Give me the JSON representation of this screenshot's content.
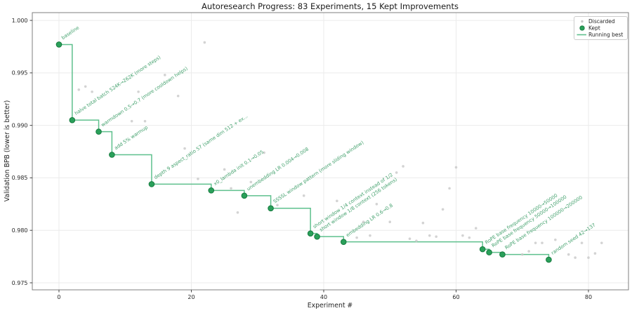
{
  "title": "Autoresearch Progress: 83 Experiments, 15 Kept Improvements",
  "chart_data": {
    "type": "scatter",
    "title": "Autoresearch Progress: 83 Experiments, 15 Kept Improvements",
    "xlabel": "Experiment #",
    "ylabel": "Validation BPB (lower is better)",
    "xlim": [
      -4.03,
      86.05
    ],
    "ylim": [
      0.97433,
      1.00074
    ],
    "xticks": [
      0,
      20,
      40,
      60,
      80
    ],
    "yticks": [
      0.975,
      0.98,
      0.985,
      0.99,
      0.995,
      1.0
    ],
    "grid": true,
    "legend": {
      "position": "upper right",
      "entries": [
        {
          "label": "Discarded",
          "marker": "dot",
          "color": "#c8c8c8"
        },
        {
          "label": "Kept",
          "marker": "dot",
          "color": "#2aa05a"
        },
        {
          "label": "Running best",
          "marker": "line",
          "color": "#5ec08d"
        }
      ]
    },
    "colors": {
      "kept_fill": "#2aa05a",
      "kept_edge": "#157a3e",
      "running_best_line": "#5ec08d",
      "annotation_text": "#43a16d",
      "discarded": "#c8c8c8",
      "grid": "#ebebeb",
      "spine": "#7f7f7f",
      "tick_text": "#262626"
    },
    "series": [
      {
        "name": "Kept",
        "type": "scatter",
        "points": [
          {
            "x": 0,
            "y": 0.9977,
            "label": "baseline"
          },
          {
            "x": 2,
            "y": 0.9905,
            "label": "halve total batch 524K→262K (more steps)"
          },
          {
            "x": 6,
            "y": 0.9894,
            "label": "warmdown 0.5→0.7 (more cooldown helps)"
          },
          {
            "x": 8,
            "y": 0.9872,
            "label": "add 5% warmup"
          },
          {
            "x": 14,
            "y": 0.9844,
            "label": "depth 9 aspect_ratio 57 (same dim 512 + ex..."
          },
          {
            "x": 23,
            "y": 0.9838,
            "label": "x0_lambda init 0.1→0.05"
          },
          {
            "x": 28,
            "y": 0.9833,
            "label": "unembedding LR 0.004→0.008"
          },
          {
            "x": 32,
            "y": 0.9821,
            "label": "SSSSL window pattern (more sliding window)"
          },
          {
            "x": 38,
            "y": 0.9797,
            "label": "short window 1/4 context instead of 1/2"
          },
          {
            "x": 39,
            "y": 0.9794,
            "label": "short window 1/8 context (256 tokens)"
          },
          {
            "x": 43,
            "y": 0.9789,
            "label": "embedding LR 0.6→0.8"
          },
          {
            "x": 64,
            "y": 0.9782,
            "label": "RoPE base frequency 10000→50000"
          },
          {
            "x": 65,
            "y": 0.9779,
            "label": "RoPE base frequency 50000→100000"
          },
          {
            "x": 67,
            "y": 0.9777,
            "label": "RoPE base frequency 100000→200000"
          },
          {
            "x": 74,
            "y": 0.9772,
            "label": "random seed 42→137"
          }
        ]
      },
      {
        "name": "Discarded",
        "type": "scatter",
        "points": [
          [
            3,
            0.9934
          ],
          [
            4,
            0.9937
          ],
          [
            5,
            0.9932
          ],
          [
            11,
            0.9904
          ],
          [
            12,
            0.9932
          ],
          [
            13,
            0.9904
          ],
          [
            16,
            0.9948
          ],
          [
            18,
            0.9928
          ],
          [
            19,
            0.9878
          ],
          [
            21,
            0.9849
          ],
          [
            22,
            0.9979
          ],
          [
            25,
            0.9858
          ],
          [
            26,
            0.984
          ],
          [
            27,
            0.9817
          ],
          [
            29,
            0.9846
          ],
          [
            31,
            0.9874
          ],
          [
            33,
            0.9824
          ],
          [
            37,
            0.9833
          ],
          [
            42,
            0.9828
          ],
          [
            45,
            0.9793
          ],
          [
            46,
            0.9808
          ],
          [
            47,
            0.9795
          ],
          [
            48,
            0.9825
          ],
          [
            50,
            0.9808
          ],
          [
            51,
            0.9855
          ],
          [
            52,
            0.9861
          ],
          [
            53,
            0.9792
          ],
          [
            54,
            0.979
          ],
          [
            55,
            0.9807
          ],
          [
            56,
            0.9795
          ],
          [
            57,
            0.9794
          ],
          [
            58,
            0.982
          ],
          [
            59,
            0.984
          ],
          [
            60,
            0.986
          ],
          [
            61,
            0.9795
          ],
          [
            62,
            0.9793
          ],
          [
            63,
            0.9802
          ],
          [
            70,
            0.9777
          ],
          [
            71,
            0.978
          ],
          [
            72,
            0.9788
          ],
          [
            73,
            0.9788
          ],
          [
            75,
            0.9791
          ],
          [
            77,
            0.9777
          ],
          [
            78,
            0.9774
          ],
          [
            79,
            0.9788
          ],
          [
            80,
            0.9774
          ],
          [
            81,
            0.9778
          ],
          [
            82,
            0.9788
          ]
        ]
      },
      {
        "name": "Running best",
        "type": "step-post-through-kept-points"
      }
    ]
  }
}
